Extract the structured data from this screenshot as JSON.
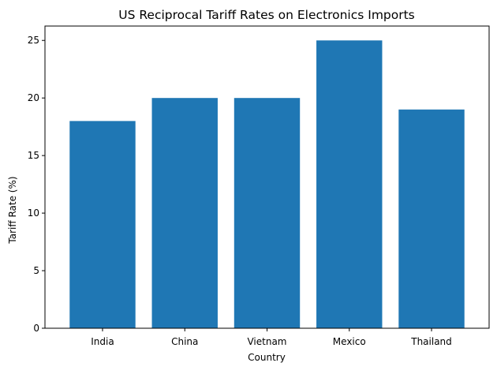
{
  "chart_data": {
    "type": "bar",
    "title": "US Reciprocal Tariff Rates on Electronics Imports",
    "xlabel": "Country",
    "ylabel": "Tariff Rate (%)",
    "categories": [
      "India",
      "China",
      "Vietnam",
      "Mexico",
      "Thailand"
    ],
    "values": [
      18,
      20,
      20,
      25,
      19
    ],
    "ylim": [
      0,
      26.25
    ],
    "yticks": [
      0,
      5,
      10,
      15,
      20,
      25
    ],
    "ytick_labels": [
      "0",
      "5",
      "10",
      "15",
      "20",
      "25"
    ],
    "grid": false,
    "bar_color": "#1f77b4"
  }
}
